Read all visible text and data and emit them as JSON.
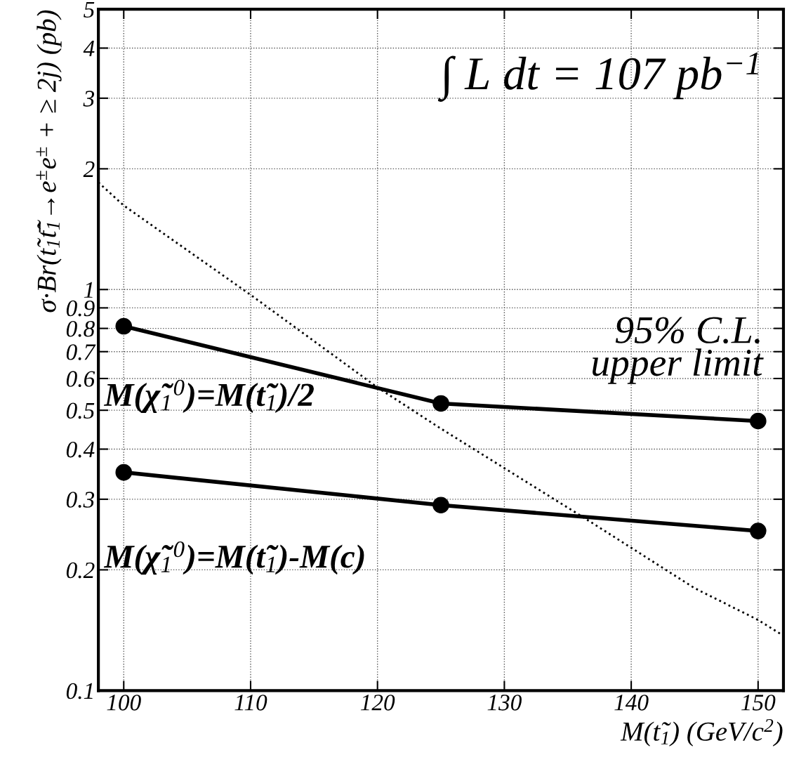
{
  "chart_data": {
    "type": "line",
    "xlabel": "M(t̃$_{1}$) (GeV/c$^{2}$)",
    "ylabel": "σ·Br(t̃$_{1}$t̃̄$_{1}$→e$^{±}$e$^{±}$ + ≥ 2j) (pb)",
    "log": "y",
    "xlim": [
      98,
      152
    ],
    "xticks": [
      100,
      110,
      120,
      130,
      140,
      150
    ],
    "ylim": [
      0.1,
      5
    ],
    "yticks": [
      0.1,
      0.2,
      0.3,
      0.4,
      0.5,
      0.6,
      0.7,
      0.8,
      0.9,
      1,
      2,
      3,
      4,
      5
    ],
    "grid": true,
    "marker": "circle",
    "line_style": "solid",
    "series": [
      {
        "name": "M(χ̃$_{1}$$^{0}$)=M(t̃$_{1}$)/2",
        "color": "#000000",
        "x": [
          100,
          125,
          150
        ],
        "values": [
          0.81,
          0.52,
          0.47
        ]
      },
      {
        "name": "M(χ̃$_{1}$$^{0}$)=M(t̃$_{1}$)-M(c)",
        "color": "#000000",
        "x": [
          100,
          125,
          150
        ],
        "values": [
          0.35,
          0.29,
          0.25
        ]
      },
      {
        "color": "#000000",
        "marker": "none",
        "line_style": "dotted",
        "x": [
          98,
          100,
          110,
          120,
          125,
          136.5,
          140,
          145,
          150,
          152
        ],
        "values": [
          1.85,
          1.62,
          0.97,
          0.57,
          0.45,
          0.267,
          0.227,
          0.18,
          0.15,
          0.137
        ]
      }
    ],
    "annotations": [
      "∫ L dt = 107 pb$^{−1}$",
      "95% C.L.\nupper limit"
    ]
  }
}
